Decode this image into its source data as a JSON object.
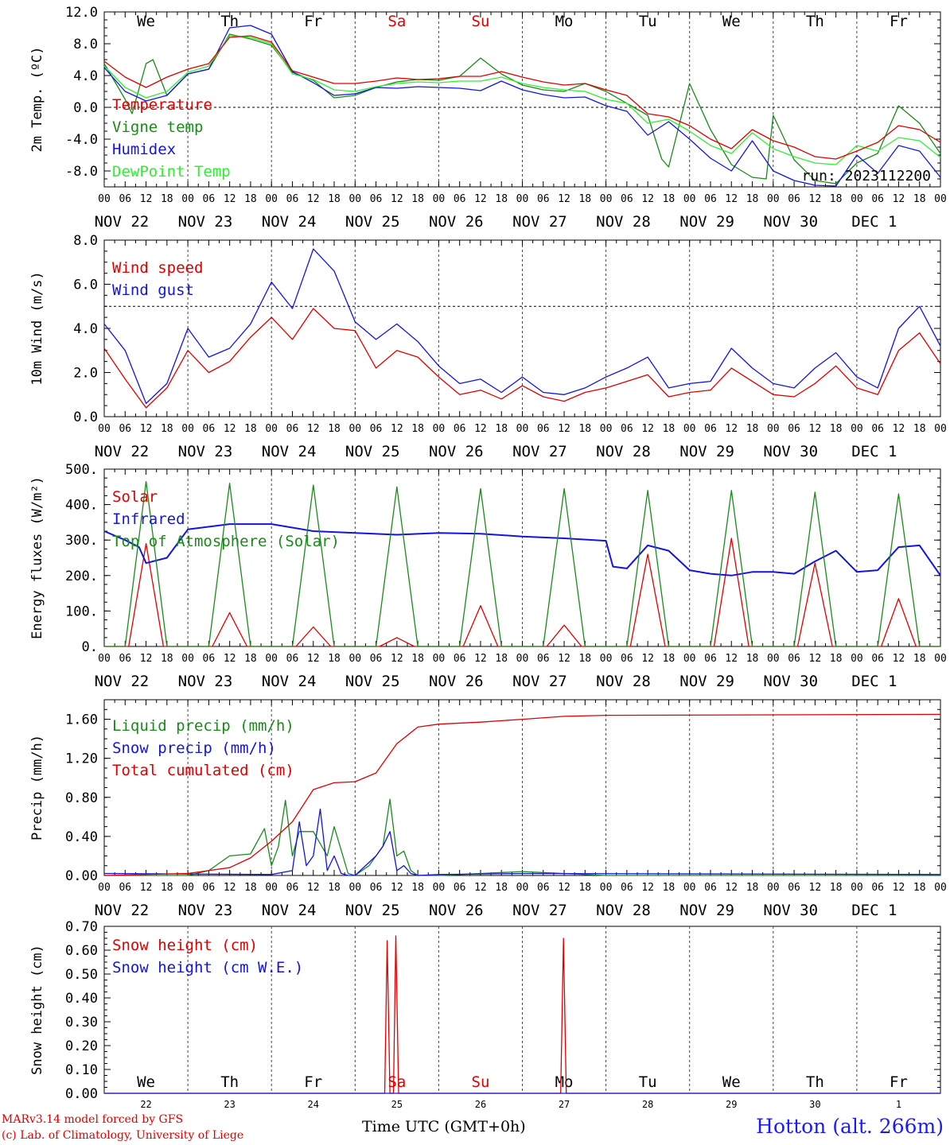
{
  "days": {
    "top": [
      "We",
      "Th",
      "Fr",
      "Sa",
      "Su",
      "Mo",
      "Tu",
      "We",
      "Th",
      "Fr"
    ],
    "dates": [
      "NOV 22",
      "NOV 23",
      "NOV 24",
      "NOV 25",
      "NOV 26",
      "NOV 27",
      "NOV 28",
      "NOV 29",
      "NOV 30",
      "DEC  1"
    ],
    "bottom": [
      "22",
      "23",
      "24",
      "25",
      "26",
      "27",
      "28",
      "29",
      "30",
      "1"
    ],
    "hours": [
      "00",
      "06",
      "12",
      "18"
    ],
    "end_hour": "00",
    "weekend_color": "#e00000"
  },
  "run_label": "run: 2023112200",
  "footer": {
    "model": "MARv3.14 model forced by GFS",
    "credit": "(c) Lab. of Climatology, University of Liege",
    "xlabel": "Time UTC (GMT+0h)",
    "station": "Hotton (alt. 266m)"
  },
  "chart_data": [
    {
      "type": "line",
      "ylabel": "2m Temp. (ºC)",
      "ylim": [
        -10,
        12
      ],
      "yticks": [
        -8,
        -4,
        0,
        4,
        8,
        12
      ],
      "ytick_labels": [
        "-8.0",
        "-4.0",
        "0.0",
        "4.0",
        "8.0",
        "12.0"
      ],
      "ref_line": 0,
      "x_unit": "hours since NOV 22 00 UTC",
      "series": [
        {
          "name": "Temperature",
          "color": "#e00000",
          "x": [
            0,
            6,
            12,
            18,
            24,
            30,
            36,
            42,
            48,
            54,
            60,
            66,
            72,
            78,
            84,
            90,
            96,
            102,
            108,
            114,
            120,
            126,
            132,
            138,
            144,
            150,
            156,
            162,
            168,
            174,
            180,
            186,
            192,
            198,
            204,
            210,
            216,
            222,
            228,
            234,
            240
          ],
          "y": [
            5.8,
            3.8,
            2.5,
            3.8,
            4.8,
            5.5,
            8.8,
            9.0,
            8.2,
            4.6,
            3.8,
            3.0,
            3.0,
            3.3,
            3.7,
            3.5,
            3.6,
            3.9,
            3.9,
            4.5,
            3.8,
            3.2,
            2.8,
            3.0,
            2.2,
            1.5,
            -0.8,
            -1.2,
            -2.3,
            -4.0,
            -5.2,
            -2.8,
            -4.2,
            -5.0,
            -6.2,
            -6.5,
            -5.5,
            -4.4,
            -2.3,
            -2.8,
            -4.4
          ]
        },
        {
          "name": "Vigne temp",
          "color": "#1a8a1a",
          "x": [
            0,
            6,
            8,
            12,
            14,
            18,
            24,
            30,
            36,
            42,
            48,
            54,
            60,
            66,
            72,
            78,
            84,
            90,
            96,
            102,
            108,
            114,
            120,
            126,
            132,
            138,
            144,
            150,
            156,
            160,
            162,
            168,
            174,
            180,
            186,
            190,
            192,
            198,
            204,
            210,
            216,
            222,
            228,
            234,
            240
          ],
          "y": [
            5.5,
            1.0,
            -0.8,
            5.5,
            6.0,
            1.5,
            4.2,
            4.8,
            9.2,
            8.6,
            7.8,
            4.4,
            3.4,
            1.2,
            1.5,
            2.5,
            3.2,
            3.5,
            3.4,
            3.9,
            6.2,
            4.2,
            2.8,
            2.2,
            2.0,
            3.0,
            2.0,
            0.5,
            -1.0,
            -6.5,
            -7.5,
            3.0,
            -2.8,
            -7.2,
            -8.8,
            -9.0,
            -1.0,
            -6.6,
            -9.2,
            -9.6,
            -7.0,
            -5.8,
            0.2,
            -2.0,
            -5.8
          ]
        },
        {
          "name": "Humidex",
          "color": "#1414e0",
          "x": [
            0,
            6,
            12,
            18,
            24,
            30,
            36,
            42,
            48,
            54,
            60,
            66,
            72,
            78,
            84,
            90,
            96,
            102,
            108,
            114,
            120,
            126,
            132,
            138,
            144,
            150,
            156,
            162,
            168,
            174,
            180,
            186,
            192,
            198,
            204,
            210,
            216,
            222,
            228,
            234,
            240
          ],
          "y": [
            5.0,
            2.0,
            0.8,
            1.5,
            4.2,
            4.8,
            10.0,
            10.3,
            9.2,
            4.5,
            3.1,
            1.5,
            1.7,
            2.5,
            2.4,
            2.6,
            2.5,
            2.4,
            2.1,
            3.3,
            2.2,
            1.6,
            1.2,
            1.3,
            0.2,
            -0.5,
            -3.5,
            -1.8,
            -4.0,
            -6.4,
            -8.0,
            -4.2,
            -8.0,
            -9.2,
            -9.8,
            -9.9,
            -6.0,
            -8.3,
            -4.8,
            -5.5,
            -8.8
          ]
        },
        {
          "name": "DewPoint Temp",
          "color": "#33ee33",
          "x": [
            0,
            6,
            12,
            18,
            24,
            30,
            36,
            42,
            48,
            54,
            60,
            66,
            72,
            78,
            84,
            90,
            96,
            102,
            108,
            114,
            120,
            126,
            132,
            138,
            144,
            150,
            156,
            162,
            168,
            174,
            180,
            186,
            192,
            198,
            204,
            210,
            216,
            222,
            228,
            234,
            240
          ],
          "y": [
            5.2,
            2.5,
            1.2,
            2.0,
            4.4,
            5.2,
            9.0,
            8.8,
            8.0,
            4.2,
            3.5,
            2.2,
            2.0,
            2.6,
            3.0,
            3.2,
            3.1,
            3.3,
            3.3,
            3.8,
            3.0,
            2.5,
            2.2,
            2.0,
            1.0,
            0.5,
            -2.0,
            -1.5,
            -3.0,
            -4.8,
            -5.8,
            -3.2,
            -5.2,
            -6.2,
            -7.0,
            -7.2,
            -4.8,
            -5.5,
            -3.8,
            -4.2,
            -6.3
          ]
        }
      ]
    },
    {
      "type": "line",
      "ylabel": "10m Wind (m/s)",
      "ylim": [
        0,
        8
      ],
      "yticks": [
        0,
        2,
        4,
        6,
        8
      ],
      "ytick_labels": [
        "0.0",
        "2.0",
        "4.0",
        "6.0",
        "8.0"
      ],
      "ref_line": 5,
      "x_unit": "hours since NOV 22 00 UTC",
      "series": [
        {
          "name": "Wind speed",
          "color": "#e00000",
          "x": [
            0,
            6,
            12,
            18,
            24,
            30,
            36,
            42,
            48,
            54,
            60,
            66,
            72,
            78,
            84,
            90,
            96,
            102,
            108,
            114,
            120,
            126,
            132,
            138,
            144,
            150,
            156,
            162,
            168,
            174,
            180,
            186,
            192,
            198,
            204,
            210,
            216,
            222,
            228,
            234,
            240
          ],
          "y": [
            3.1,
            1.7,
            0.4,
            1.3,
            3.0,
            2.0,
            2.5,
            3.6,
            4.5,
            3.5,
            4.9,
            4.0,
            3.9,
            2.2,
            3.0,
            2.7,
            1.8,
            1.0,
            1.2,
            0.8,
            1.4,
            0.9,
            0.7,
            1.1,
            1.3,
            1.6,
            1.9,
            0.9,
            1.1,
            1.2,
            2.2,
            1.6,
            1.0,
            0.9,
            1.5,
            2.3,
            1.3,
            1.0,
            3.0,
            3.8,
            2.4
          ]
        },
        {
          "name": "Wind gust",
          "color": "#1414e0",
          "x": [
            0,
            6,
            12,
            18,
            24,
            30,
            36,
            42,
            48,
            54,
            60,
            66,
            72,
            78,
            84,
            90,
            96,
            102,
            108,
            114,
            120,
            126,
            132,
            138,
            144,
            150,
            156,
            162,
            168,
            174,
            180,
            186,
            192,
            198,
            204,
            210,
            216,
            222,
            228,
            234,
            240
          ],
          "y": [
            4.2,
            3.0,
            0.6,
            1.5,
            4.0,
            2.7,
            3.1,
            4.2,
            6.1,
            4.9,
            7.6,
            6.6,
            4.3,
            3.5,
            4.2,
            3.4,
            2.3,
            1.5,
            1.7,
            1.1,
            1.8,
            1.1,
            1.0,
            1.3,
            1.8,
            2.2,
            2.7,
            1.3,
            1.5,
            1.6,
            3.1,
            2.2,
            1.5,
            1.3,
            2.2,
            2.9,
            1.8,
            1.3,
            4.0,
            5.0,
            3.2
          ]
        }
      ]
    },
    {
      "type": "line",
      "ylabel": "Energy fluxes (W/m²)",
      "ylim": [
        0,
        500
      ],
      "yticks": [
        0,
        100,
        200,
        300,
        400,
        500
      ],
      "ytick_labels": [
        "0.",
        "100.",
        "200.",
        "300.",
        "400.",
        "500."
      ],
      "x_unit": "hours since NOV 22 00 UTC",
      "series": [
        {
          "name": "Solar",
          "color": "#e00000",
          "x": [
            0,
            7,
            12,
            17,
            24,
            31,
            36,
            41,
            48,
            55,
            60,
            65,
            72,
            79,
            84,
            89,
            96,
            103,
            108,
            113,
            120,
            127,
            132,
            137,
            144,
            151,
            156,
            161,
            168,
            175,
            180,
            185,
            192,
            199,
            204,
            209,
            216,
            223,
            228,
            233,
            240
          ],
          "y": [
            0,
            0,
            290,
            0,
            0,
            0,
            95,
            0,
            0,
            0,
            55,
            0,
            0,
            0,
            25,
            0,
            0,
            0,
            115,
            0,
            0,
            0,
            60,
            0,
            0,
            0,
            260,
            0,
            0,
            0,
            305,
            0,
            0,
            0,
            235,
            0,
            0,
            0,
            135,
            0,
            0
          ]
        },
        {
          "name": "Infrared",
          "color": "#1414e0",
          "x": [
            0,
            6,
            10,
            12,
            18,
            24,
            36,
            48,
            60,
            72,
            84,
            96,
            108,
            120,
            132,
            144,
            146,
            150,
            156,
            162,
            168,
            174,
            180,
            186,
            192,
            198,
            204,
            210,
            216,
            222,
            228,
            234,
            240
          ],
          "y": [
            325,
            300,
            280,
            235,
            250,
            330,
            345,
            345,
            325,
            320,
            315,
            320,
            318,
            310,
            305,
            298,
            225,
            220,
            285,
            270,
            215,
            205,
            200,
            210,
            210,
            205,
            240,
            270,
            210,
            215,
            280,
            285,
            200
          ]
        },
        {
          "name": "Top of Atmosphere (Solar)",
          "color": "#1a8a1a",
          "x": [
            0,
            6,
            12,
            18,
            24,
            30,
            36,
            42,
            48,
            54,
            60,
            66,
            72,
            78,
            84,
            90,
            96,
            102,
            108,
            114,
            120,
            126,
            132,
            138,
            144,
            150,
            156,
            162,
            168,
            174,
            180,
            186,
            192,
            198,
            204,
            210,
            216,
            222,
            228,
            234,
            240
          ],
          "y": [
            0,
            0,
            465,
            0,
            0,
            0,
            460,
            0,
            0,
            0,
            455,
            0,
            0,
            0,
            450,
            0,
            0,
            0,
            445,
            0,
            0,
            0,
            445,
            0,
            0,
            0,
            440,
            0,
            0,
            0,
            440,
            0,
            0,
            0,
            435,
            0,
            0,
            0,
            430,
            0,
            0
          ]
        }
      ]
    },
    {
      "type": "line",
      "ylabel": "Precip (mm/h)",
      "ylim": [
        0,
        1.8
      ],
      "yticks": [
        0,
        0.4,
        0.8,
        1.2,
        1.6
      ],
      "ytick_labels": [
        "0.00",
        "0.40",
        "0.80",
        "1.20",
        "1.60"
      ],
      "x_unit": "hours since NOV 22 00 UTC",
      "series": [
        {
          "name": "Liquid precip (mm/h)",
          "color": "#1a8a1a",
          "x": [
            0,
            24,
            30,
            36,
            42,
            46,
            48,
            50,
            52,
            54,
            56,
            60,
            64,
            66,
            70,
            72,
            76,
            80,
            82,
            84,
            86,
            88,
            90,
            96,
            120,
            144,
            240
          ],
          "y": [
            0,
            0,
            0.05,
            0.2,
            0.22,
            0.48,
            0.1,
            0.3,
            0.77,
            0.2,
            0.45,
            0.45,
            0.2,
            0.5,
            0.02,
            0,
            0.1,
            0.3,
            0.78,
            0.2,
            0.25,
            0.05,
            0,
            0,
            0.04,
            0,
            0
          ]
        },
        {
          "name": "Snow precip (mm/h)",
          "color": "#1414e0",
          "x": [
            0,
            48,
            54,
            56,
            58,
            60,
            62,
            64,
            66,
            68,
            70,
            72,
            78,
            80,
            82,
            84,
            86,
            88,
            90,
            96,
            120,
            240
          ],
          "y": [
            0.02,
            0.01,
            0.05,
            0.55,
            0.1,
            0.2,
            0.68,
            0.05,
            0.2,
            0.02,
            0,
            0,
            0.2,
            0.3,
            0.45,
            0.05,
            0.1,
            0.02,
            0,
            0.01,
            0.02,
            0.01
          ]
        },
        {
          "name": "Total cumulated (cm)",
          "color": "#e00000",
          "x": [
            0,
            24,
            36,
            42,
            48,
            54,
            60,
            66,
            72,
            78,
            84,
            90,
            96,
            108,
            120,
            132,
            144,
            240
          ],
          "y": [
            0,
            0.02,
            0.08,
            0.18,
            0.35,
            0.55,
            0.88,
            0.95,
            0.96,
            1.05,
            1.35,
            1.52,
            1.55,
            1.57,
            1.6,
            1.63,
            1.64,
            1.65
          ]
        }
      ]
    },
    {
      "type": "line",
      "ylabel": "Snow height (cm)",
      "ylim": [
        0,
        0.7
      ],
      "yticks": [
        0,
        0.1,
        0.2,
        0.3,
        0.4,
        0.5,
        0.6,
        0.7
      ],
      "ytick_labels": [
        "0.00",
        "0.10",
        "0.20",
        "0.30",
        "0.40",
        "0.50",
        "0.60",
        "0.70"
      ],
      "x_unit": "hours since NOV 22 00 UTC",
      "series": [
        {
          "name": "Snow height (cm)",
          "color": "#e00000",
          "x": [
            0,
            80.5,
            81.2,
            82,
            83,
            83.7,
            84.5,
            130,
            131,
            131.8,
            132.6,
            240
          ],
          "y": [
            0,
            0,
            0.64,
            0,
            0,
            0.66,
            0,
            0,
            0,
            0.65,
            0,
            0
          ]
        },
        {
          "name": "Snow height (cm W.E.)",
          "color": "#1414e0",
          "x": [
            0,
            240
          ],
          "y": [
            0,
            0
          ]
        }
      ]
    }
  ]
}
